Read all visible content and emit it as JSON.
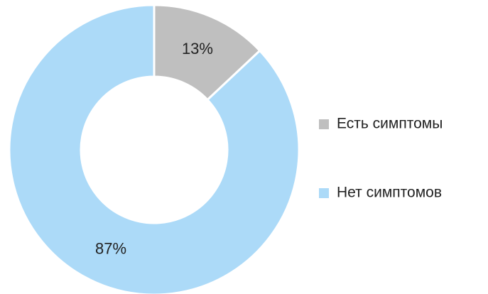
{
  "chart_data": {
    "type": "pie",
    "categories": [
      "Есть симптомы",
      "Нет симптомов"
    ],
    "values": [
      13,
      87
    ],
    "value_labels": [
      "13%",
      "87%"
    ],
    "colors": [
      "#bfbfbf",
      "#acdaf8"
    ],
    "legend": "right"
  }
}
